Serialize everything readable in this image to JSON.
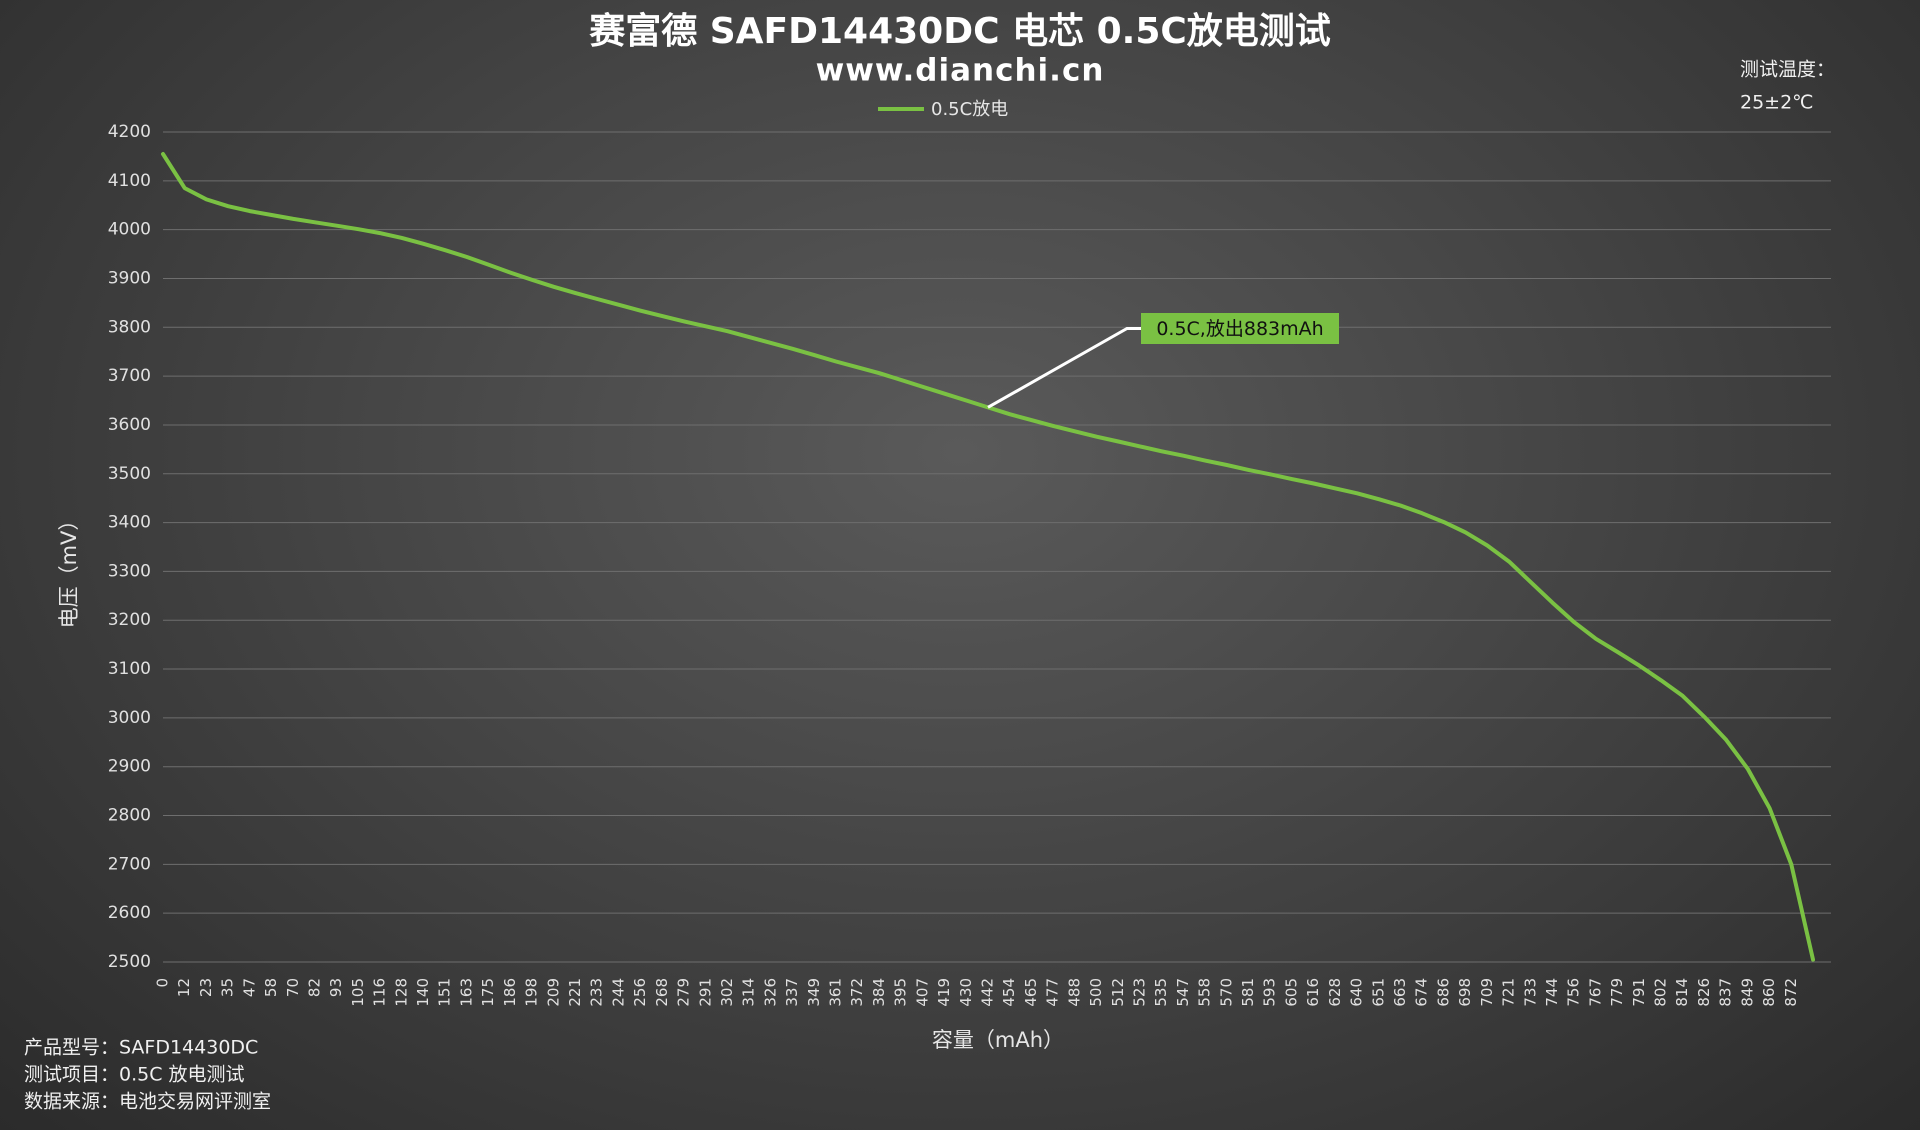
{
  "chart_data": {
    "type": "line",
    "title": "赛富德 SAFD14430DC 电芯 0.5C放电测试",
    "subtitle": "www.dianchi.cn",
    "x_label": "容量（mAh）",
    "y_label": "电压（mV）",
    "temperature_label": "测试温度：",
    "temperature_value": "25±2℃",
    "notes": [
      "产品型号：SAFD14430DC",
      "测试项目：0.5C 放电测试",
      "数据来源：电池交易网评测室"
    ],
    "annotation": "0.5C,放出883mAh",
    "annotation_color": "#7ac143",
    "grid": true,
    "legend": "top",
    "ylim": [
      2500,
      4200
    ],
    "yticks": [
      2500,
      2600,
      2700,
      2800,
      2900,
      3000,
      3100,
      3200,
      3300,
      3400,
      3500,
      3600,
      3700,
      3800,
      3900,
      4000,
      4100,
      4200
    ],
    "categories": [
      "0",
      "12",
      "23",
      "35",
      "47",
      "58",
      "70",
      "82",
      "93",
      "105",
      "116",
      "128",
      "140",
      "151",
      "163",
      "175",
      "186",
      "198",
      "209",
      "221",
      "233",
      "244",
      "256",
      "268",
      "279",
      "291",
      "302",
      "314",
      "326",
      "337",
      "349",
      "361",
      "372",
      "384",
      "395",
      "407",
      "419",
      "430",
      "442",
      "454",
      "465",
      "477",
      "488",
      "500",
      "512",
      "523",
      "535",
      "547",
      "558",
      "570",
      "581",
      "593",
      "605",
      "616",
      "628",
      "640",
      "651",
      "663",
      "674",
      "686",
      "698",
      "709",
      "721",
      "733",
      "744",
      "756",
      "767",
      "779",
      "791",
      "802",
      "814",
      "826",
      "837",
      "849",
      "860",
      "872",
      null
    ],
    "series": [
      {
        "name": "0.5C放电",
        "color": "#7ac143",
        "values": [
          4155,
          4085,
          4062,
          4048,
          4038,
          4030,
          4022,
          4015,
          4008,
          4001,
          3993,
          3983,
          3971,
          3958,
          3944,
          3928,
          3912,
          3897,
          3883,
          3870,
          3858,
          3846,
          3834,
          3823,
          3812,
          3802,
          3792,
          3780,
          3768,
          3756,
          3743,
          3730,
          3718,
          3706,
          3692,
          3678,
          3664,
          3650,
          3636,
          3622,
          3610,
          3598,
          3587,
          3576,
          3566,
          3556,
          3546,
          3537,
          3527,
          3518,
          3508,
          3499,
          3489,
          3480,
          3470,
          3460,
          3448,
          3435,
          3419,
          3401,
          3380,
          3353,
          3320,
          3278,
          3236,
          3196,
          3162,
          3135,
          3107,
          3077,
          3045,
          3002,
          2955,
          2895,
          2815,
          2700,
          2505
        ]
      }
    ]
  }
}
